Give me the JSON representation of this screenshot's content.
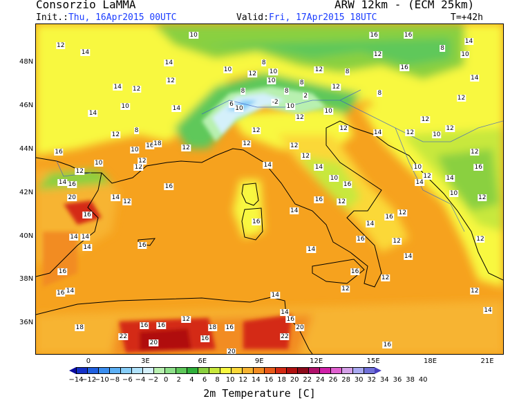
{
  "header": {
    "org": "Consorzio LaMMA",
    "model": "ARW 12km  -  (ECM 25km)",
    "init_prefix": "Init.:",
    "init_value": "Thu, 16Apr2015 00UTC",
    "valid_prefix": "Valid:",
    "valid_value": "Fri, 17Apr2015 18UTC",
    "lead": "T=+42h"
  },
  "axes": {
    "lat_labels": [
      "48N",
      "46N",
      "44N",
      "42N",
      "40N",
      "38N",
      "36N"
    ],
    "lon_labels": [
      "0",
      "3E",
      "6E",
      "9E",
      "12E",
      "15E",
      "18E",
      "21E"
    ]
  },
  "colorbar": {
    "title": "2m Temperature [C]",
    "labels": [
      "-14",
      "-12",
      "-10",
      "-8",
      "-6",
      "-4",
      "-2",
      "0",
      "2",
      "4",
      "6",
      "8",
      "10",
      "12",
      "14",
      "16",
      "18",
      "20",
      "22",
      "24",
      "26",
      "28",
      "30",
      "32",
      "34",
      "36",
      "38",
      "40"
    ],
    "colors": [
      "#0a0aa0",
      "#1430c8",
      "#2060e0",
      "#3a8ef0",
      "#5cb0f5",
      "#86cdf8",
      "#b0e2fb",
      "#d4f0fa",
      "#b8f0b0",
      "#8ee08a",
      "#5ec85a",
      "#2fb03a",
      "#8ad040",
      "#c8e83c",
      "#f8f840",
      "#fbd838",
      "#f7b431",
      "#f28c22",
      "#e95a19",
      "#d42a14",
      "#b01010",
      "#8c0a1a",
      "#b0106a",
      "#d020a8",
      "#e060d0",
      "#d4a0e8",
      "#a8a8f0",
      "#7070d8",
      "#4a40c0"
    ]
  },
  "map": {
    "temperature_labels": [
      {
        "v": "10",
        "lat": 49.3,
        "lon": 5.5
      },
      {
        "v": "12",
        "lat": 48.8,
        "lon": -1.5
      },
      {
        "v": "14",
        "lat": 48.5,
        "lon": -0.2
      },
      {
        "v": "14",
        "lat": 48.0,
        "lon": 4.2
      },
      {
        "v": "10",
        "lat": 47.7,
        "lon": 7.3
      },
      {
        "v": "12",
        "lat": 47.5,
        "lon": 8.6
      },
      {
        "v": "8",
        "lat": 48.0,
        "lon": 9.2
      },
      {
        "v": "12",
        "lat": 47.2,
        "lon": 4.3
      },
      {
        "v": "14",
        "lat": 46.9,
        "lon": 1.5
      },
      {
        "v": "12",
        "lat": 46.8,
        "lon": 2.5
      },
      {
        "v": "10",
        "lat": 46.0,
        "lon": 1.9
      },
      {
        "v": "14",
        "lat": 45.7,
        "lon": 0.2
      },
      {
        "v": "14",
        "lat": 45.9,
        "lon": 4.6
      },
      {
        "v": "12",
        "lat": 44.7,
        "lon": 1.4
      },
      {
        "v": "8",
        "lat": 44.9,
        "lon": 2.5
      },
      {
        "v": "10",
        "lat": 44.0,
        "lon": 2.4
      },
      {
        "v": "16",
        "lat": 44.2,
        "lon": 3.2
      },
      {
        "v": "18",
        "lat": 44.3,
        "lon": 3.6
      },
      {
        "v": "12",
        "lat": 44.1,
        "lon": 5.1
      },
      {
        "v": "12",
        "lat": 44.3,
        "lon": 8.3
      },
      {
        "v": "16",
        "lat": 43.9,
        "lon": -1.6
      },
      {
        "v": "12",
        "lat": 43.0,
        "lon": -0.5
      },
      {
        "v": "12",
        "lat": 43.2,
        "lon": 2.6
      },
      {
        "v": "12",
        "lat": 43.5,
        "lon": 2.8
      },
      {
        "v": "14",
        "lat": 42.5,
        "lon": -1.4
      },
      {
        "v": "16",
        "lat": 42.4,
        "lon": -0.9
      },
      {
        "v": "20",
        "lat": 41.8,
        "lon": -0.9
      },
      {
        "v": "14",
        "lat": 41.8,
        "lon": 1.4
      },
      {
        "v": "12",
        "lat": 41.6,
        "lon": 2.0
      },
      {
        "v": "16",
        "lat": 41.0,
        "lon": -0.1
      },
      {
        "v": "16",
        "lat": 42.3,
        "lon": 4.2
      },
      {
        "v": "14",
        "lat": 43.3,
        "lon": 9.4
      },
      {
        "v": "14",
        "lat": 40.0,
        "lon": -0.8
      },
      {
        "v": "14",
        "lat": 40.0,
        "lon": -0.2
      },
      {
        "v": "16",
        "lat": 39.6,
        "lon": 2.8
      },
      {
        "v": "14",
        "lat": 39.5,
        "lon": -0.1
      },
      {
        "v": "16",
        "lat": 38.4,
        "lon": -1.4
      },
      {
        "v": "14",
        "lat": 39.4,
        "lon": 11.7
      },
      {
        "v": "16",
        "lat": 38.4,
        "lon": 14.0
      },
      {
        "v": "12",
        "lat": 37.6,
        "lon": 13.5
      },
      {
        "v": "12",
        "lat": 38.1,
        "lon": 15.6
      },
      {
        "v": "14",
        "lat": 37.3,
        "lon": 9.8
      },
      {
        "v": "18",
        "lat": 35.8,
        "lon": -0.5
      },
      {
        "v": "16",
        "lat": 35.9,
        "lon": 2.9
      },
      {
        "v": "16",
        "lat": 35.9,
        "lon": 3.8
      },
      {
        "v": "18",
        "lat": 35.8,
        "lon": 6.5
      },
      {
        "v": "16",
        "lat": 35.8,
        "lon": 7.4
      },
      {
        "v": "20",
        "lat": 35.8,
        "lon": 11.1
      },
      {
        "v": "22",
        "lat": 35.4,
        "lon": 1.8
      },
      {
        "v": "20",
        "lat": 35.1,
        "lon": 3.4
      },
      {
        "v": "16",
        "lat": 35.3,
        "lon": 6.1
      },
      {
        "v": "22",
        "lat": 35.4,
        "lon": 10.3
      },
      {
        "v": "20",
        "lat": 34.7,
        "lon": 7.5
      },
      {
        "v": "16",
        "lat": 35.0,
        "lon": 15.7
      },
      {
        "v": "12",
        "lat": 36.2,
        "lon": 5.1
      },
      {
        "v": "14",
        "lat": 36.5,
        "lon": 10.3
      },
      {
        "v": "16",
        "lat": 36.2,
        "lon": 10.6
      },
      {
        "v": "16",
        "lat": 37.4,
        "lon": -1.5
      },
      {
        "v": "14",
        "lat": 37.5,
        "lon": -1.0
      },
      {
        "v": "10",
        "lat": 47.2,
        "lon": 9.6
      },
      {
        "v": "8",
        "lat": 46.7,
        "lon": 10.4
      },
      {
        "v": "-2",
        "lat": 46.2,
        "lon": 9.8
      },
      {
        "v": "2",
        "lat": 46.5,
        "lon": 11.4
      },
      {
        "v": "8",
        "lat": 47.1,
        "lon": 11.2
      },
      {
        "v": "10",
        "lat": 46.0,
        "lon": 10.6
      },
      {
        "v": "12",
        "lat": 45.5,
        "lon": 11.1
      },
      {
        "v": "12",
        "lat": 44.2,
        "lon": 10.8
      },
      {
        "v": "12",
        "lat": 43.7,
        "lon": 11.4
      },
      {
        "v": "12",
        "lat": 45.0,
        "lon": 13.4
      },
      {
        "v": "10",
        "lat": 45.8,
        "lon": 12.6
      },
      {
        "v": "14",
        "lat": 44.8,
        "lon": 15.2
      },
      {
        "v": "12",
        "lat": 44.8,
        "lon": 16.9
      },
      {
        "v": "14",
        "lat": 43.2,
        "lon": 12.1
      },
      {
        "v": "10",
        "lat": 42.7,
        "lon": 12.9
      },
      {
        "v": "16",
        "lat": 42.4,
        "lon": 13.6
      },
      {
        "v": "16",
        "lat": 41.7,
        "lon": 12.1
      },
      {
        "v": "12",
        "lat": 41.6,
        "lon": 13.3
      },
      {
        "v": "16",
        "lat": 40.9,
        "lon": 15.8
      },
      {
        "v": "14",
        "lat": 40.6,
        "lon": 14.8
      },
      {
        "v": "16",
        "lat": 39.9,
        "lon": 14.3
      },
      {
        "v": "16",
        "lat": 40.7,
        "lon": 8.8
      },
      {
        "v": "12",
        "lat": 41.1,
        "lon": 16.5
      },
      {
        "v": "14",
        "lat": 42.5,
        "lon": 17.4
      },
      {
        "v": "14",
        "lat": 42.7,
        "lon": 19.0
      },
      {
        "v": "10",
        "lat": 43.2,
        "lon": 17.3
      },
      {
        "v": "12",
        "lat": 42.8,
        "lon": 17.8
      },
      {
        "v": "12",
        "lat": 43.9,
        "lon": 20.3
      },
      {
        "v": "16",
        "lat": 43.2,
        "lon": 20.5
      },
      {
        "v": "12",
        "lat": 45.4,
        "lon": 17.7
      },
      {
        "v": "12",
        "lat": 46.4,
        "lon": 19.6
      },
      {
        "v": "14",
        "lat": 47.3,
        "lon": 20.3
      },
      {
        "v": "10",
        "lat": 48.4,
        "lon": 19.8
      },
      {
        "v": "12",
        "lat": 48.4,
        "lon": 15.2
      },
      {
        "v": "16",
        "lat": 47.8,
        "lon": 16.6
      },
      {
        "v": "14",
        "lat": 49.0,
        "lon": 20.0
      },
      {
        "v": "16",
        "lat": 49.3,
        "lon": 15.0
      },
      {
        "v": "16",
        "lat": 49.3,
        "lon": 16.8
      },
      {
        "v": "12",
        "lat": 47.7,
        "lon": 12.1
      },
      {
        "v": "8",
        "lat": 47.6,
        "lon": 13.6
      },
      {
        "v": "12",
        "lat": 46.9,
        "lon": 13.0
      },
      {
        "v": "8",
        "lat": 46.6,
        "lon": 15.3
      },
      {
        "v": "12",
        "lat": 45.0,
        "lon": 19.0
      },
      {
        "v": "10",
        "lat": 44.7,
        "lon": 18.3
      },
      {
        "v": "12",
        "lat": 41.8,
        "lon": 20.7
      },
      {
        "v": "12",
        "lat": 39.9,
        "lon": 20.6
      },
      {
        "v": "12",
        "lat": 37.5,
        "lon": 20.3
      },
      {
        "v": "14",
        "lat": 36.6,
        "lon": 21.0
      },
      {
        "v": "14",
        "lat": 39.1,
        "lon": 16.8
      },
      {
        "v": "12",
        "lat": 39.8,
        "lon": 16.2
      },
      {
        "v": "14",
        "lat": 41.2,
        "lon": 10.8
      },
      {
        "v": "10",
        "lat": 43.4,
        "lon": 0.5
      },
      {
        "v": "8",
        "lat": 48.7,
        "lon": 18.6
      },
      {
        "v": "12",
        "lat": 44.9,
        "lon": 8.8
      },
      {
        "v": "6",
        "lat": 46.1,
        "lon": 7.5
      },
      {
        "v": "8",
        "lat": 46.7,
        "lon": 8.1
      },
      {
        "v": "10",
        "lat": 45.9,
        "lon": 7.9
      },
      {
        "v": "10",
        "lat": 47.6,
        "lon": 9.7
      },
      {
        "v": "10",
        "lat": 42.0,
        "lon": 19.2
      }
    ]
  }
}
